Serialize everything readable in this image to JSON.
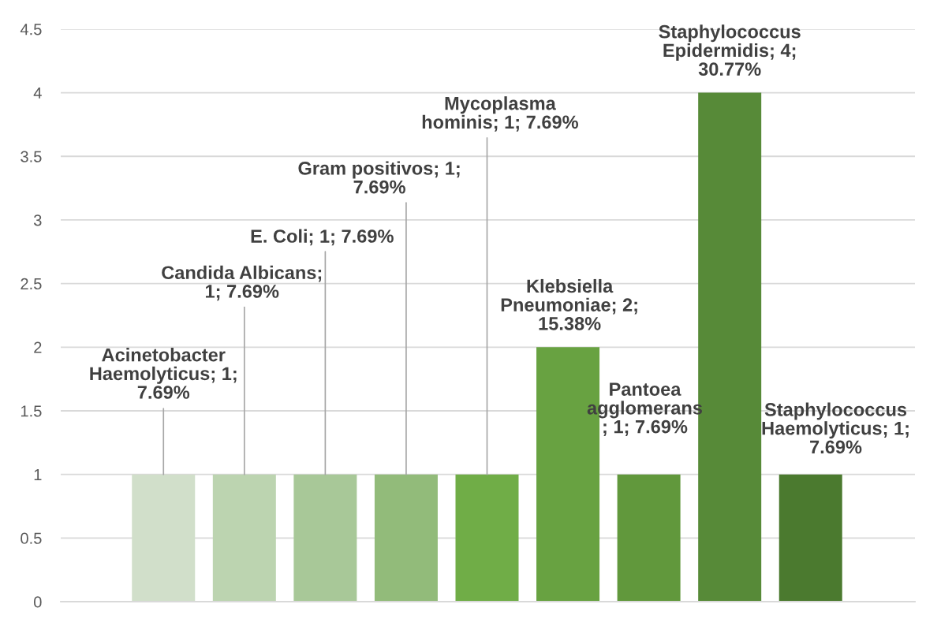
{
  "chart_data": {
    "type": "bar",
    "categories": [
      null,
      null,
      null,
      null,
      null,
      null,
      null,
      null,
      null
    ],
    "values": [
      1,
      1,
      1,
      1,
      1,
      2,
      1,
      4,
      1
    ],
    "colors": [
      "#d1dfca",
      "#bcd4b0",
      "#a8c898",
      "#92bb7a",
      "#70ad47",
      "#68a241",
      "#61983c",
      "#578a38",
      "#4b7a2f"
    ],
    "value_labels": [
      "Acinetobacter\nHaemolyticus; 1;\n7.69%",
      "Candida Albicans;\n1; 7.69%",
      "E. Coli; 1; 7.69%",
      "Gram positivos; 1;\n7.69%",
      "Mycoplasma\nhominis; 1; 7.69%",
      "Klebsiella\nPneumoniae; 2;\n15.38%",
      "Pantoea\nagglomerans\n; 1; 7.69%",
      "Staphylococcus\nEpidermidis; 4;\n30.77%",
      "Staphylococcus\nHaemolyticus; 1;\n7.69%"
    ],
    "ylim": [
      0,
      4.5
    ],
    "yticks": [
      0,
      0.5,
      1,
      1.5,
      2,
      2.5,
      3,
      3.5,
      4,
      4.5
    ],
    "grid": "y",
    "tick_labels": "y"
  }
}
